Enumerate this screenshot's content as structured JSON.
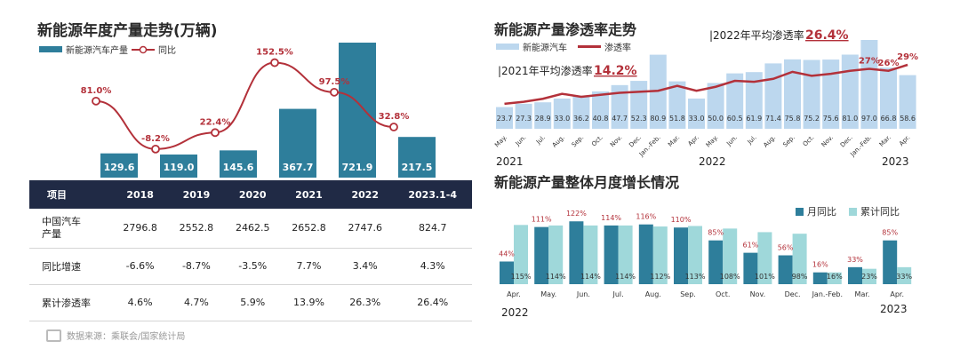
{
  "left_chart": {
    "title": "新能源年度产量走势(万辆)",
    "legend_bar": "新能源汽车产量",
    "legend_line": "同比",
    "bar_color": "#2e7e9b",
    "line_color": "#b3313a",
    "chart_data": {
      "type": "bar+line",
      "categories": [
        "2018",
        "2019",
        "2020",
        "2021",
        "2022",
        "2023.1-4"
      ],
      "series": [
        {
          "name": "新能源汽车产量",
          "values": [
            129.6,
            119.0,
            145.6,
            367.7,
            721.9,
            217.5
          ],
          "labels": [
            "129.6",
            "119.0",
            "145.6",
            "367.7",
            "721.9",
            "217.5"
          ]
        },
        {
          "name": "同比",
          "values": [
            81.0,
            -8.2,
            22.4,
            152.5,
            97.5,
            32.8
          ],
          "labels": [
            "81.0%",
            "-8.2%",
            "22.4%",
            "152.5%",
            "97.5%",
            "32.8%"
          ]
        }
      ]
    }
  },
  "table": {
    "header": [
      "项目",
      "2018",
      "2019",
      "2020",
      "2021",
      "2022",
      "2023.1-4"
    ],
    "rows": [
      {
        "label": "中国汽车\n产量",
        "values": [
          "2796.8",
          "2552.8",
          "2462.5",
          "2652.8",
          "2747.6",
          "824.7"
        ]
      },
      {
        "label": "同比增速",
        "values": [
          "-6.6%",
          "-8.7%",
          "-3.5%",
          "7.7%",
          "3.4%",
          "4.3%"
        ]
      },
      {
        "label": "累计渗透率",
        "values": [
          "4.6%",
          "4.7%",
          "5.9%",
          "13.9%",
          "26.3%",
          "26.4%"
        ]
      }
    ]
  },
  "source": "数据来源：乘联会/国家统计局",
  "right_top_chart": {
    "title": "新能源产量渗透率走势",
    "legend_bar": "新能源汽车",
    "legend_line": "渗透率",
    "bar_color": "#bcd7ee",
    "line_color": "#b3313a",
    "annotation_2021_prefix": "2021年平均渗透率",
    "annotation_2021_value": "14.2%",
    "annotation_2022_prefix": "2022年平均渗透率",
    "annotation_2022_value": "26.4%",
    "year_labels": [
      "2021",
      "2022",
      "2023"
    ],
    "chart_data": {
      "type": "bar+line",
      "categories": [
        "May.",
        "Jun.",
        "Jul.",
        "Aug.",
        "Sep.",
        "Oct.",
        "Nov.",
        "Dec.",
        "Jan.-Feb.",
        "Mar.",
        "Apr.",
        "May.",
        "Jun.",
        "Jul.",
        "Aug.",
        "Sep.",
        "Oct.",
        "Nov.",
        "Dec.",
        "Jan.-Feb.",
        "Mar.",
        "Apr."
      ],
      "series": [
        {
          "name": "新能源汽车",
          "values": [
            23.7,
            27.3,
            28.9,
            33.0,
            36.2,
            40.8,
            47.7,
            52.3,
            80.9,
            51.8,
            33.0,
            50.0,
            60.5,
            61.9,
            71.4,
            75.8,
            75.2,
            75.6,
            81.0,
            97.0,
            66.8,
            58.6
          ],
          "labels": [
            "23.7",
            "27.3",
            "28.9",
            "33.0",
            "36.2",
            "40.8",
            "47.7",
            "52.3",
            "80.9",
            "51.8",
            "33.0",
            "50.0",
            "60.5",
            "61.9",
            "71.4",
            "75.8",
            "75.2",
            "75.6",
            "81.0",
            "97.0",
            "66.8",
            "58.6"
          ]
        },
        {
          "name": "渗透率",
          "values": [
            9.5,
            10.5,
            12.0,
            14.5,
            13.0,
            14.0,
            15.0,
            15.5,
            16.0,
            18.5,
            16.0,
            18.0,
            21.0,
            20.5,
            22.0,
            25.5,
            23.5,
            24.5,
            26.0,
            27.0,
            26.0,
            29.0
          ],
          "labels": {
            "19": "27%",
            "20": "26%",
            "21": "29%"
          }
        }
      ]
    }
  },
  "right_bottom_chart": {
    "title": "新能源产量整体月度增长情况",
    "legend_a": "月同比",
    "legend_b": "累计同比",
    "color_a": "#2e7e9b",
    "color_b": "#9fd8da",
    "label_color": "#b3313a",
    "year_labels": [
      "2022",
      "2023"
    ],
    "chart_data": {
      "type": "grouped-bar",
      "categories": [
        "Apr.",
        "May.",
        "Jun.",
        "Jul.",
        "Aug.",
        "Sep.",
        "Oct.",
        "Nov.",
        "Dec.",
        "Jan.-Feb.",
        "Mar.",
        "Apr."
      ],
      "series": [
        {
          "name": "月同比",
          "values": [
            44,
            111,
            122,
            114,
            116,
            110,
            85,
            61,
            56,
            16,
            33,
            85
          ],
          "labels": [
            "44%",
            "111%",
            "122%",
            "114%",
            "116%",
            "110%",
            "85%",
            "61%",
            "56%",
            "16%",
            "33%",
            "85%"
          ]
        },
        {
          "name": "累计同比",
          "values": [
            115,
            114,
            114,
            114,
            112,
            113,
            108,
            101,
            98,
            16,
            23,
            33
          ],
          "labels": [
            "115%",
            "114%",
            "114%",
            "114%",
            "112%",
            "113%",
            "108%",
            "101%",
            "98%",
            "16%",
            "23%",
            "33%"
          ]
        }
      ]
    }
  }
}
